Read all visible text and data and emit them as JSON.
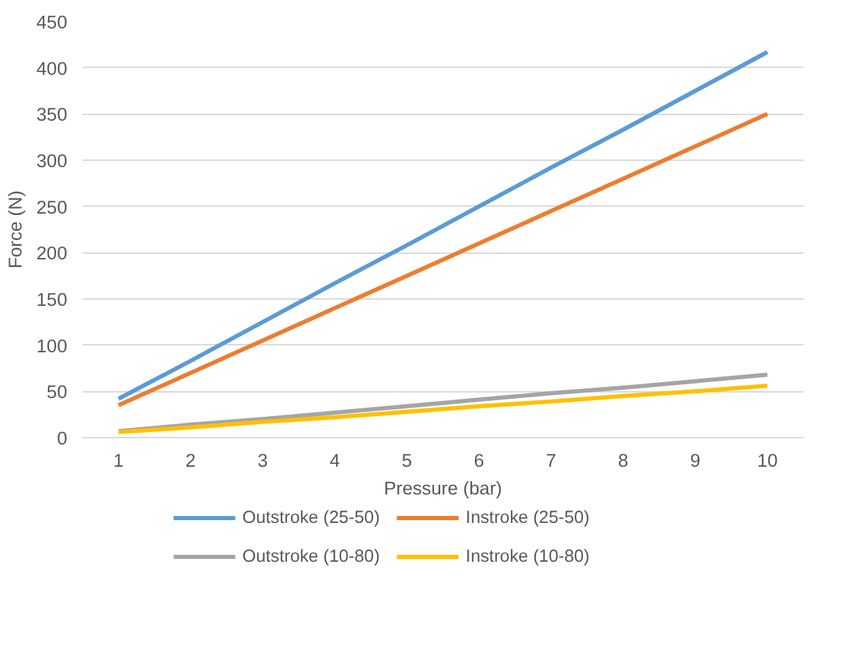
{
  "chart_data": {
    "type": "line",
    "xlabel": "Pressure (bar)",
    "ylabel": "Force (N)",
    "categories": [
      "1",
      "2",
      "3",
      "4",
      "5",
      "6",
      "7",
      "8",
      "9",
      "10"
    ],
    "series": [
      {
        "name": "Outstroke (25-50)",
        "color": "#5b9bd5",
        "values": [
          42,
          83,
          125,
          167,
          208,
          250,
          292,
          333,
          375,
          417
        ]
      },
      {
        "name": "Instroke (25-50)",
        "color": "#ed7d31",
        "values": [
          35,
          70,
          105,
          140,
          175,
          210,
          245,
          280,
          315,
          350
        ]
      },
      {
        "name": "Outstroke (10-80)",
        "color": "#a5a5a5",
        "values": [
          7,
          14,
          20,
          27,
          34,
          41,
          48,
          54,
          61,
          68
        ]
      },
      {
        "name": "Instroke (10-80)",
        "color": "#ffc000",
        "values": [
          6,
          11,
          17,
          22,
          28,
          34,
          39,
          45,
          50,
          56
        ]
      }
    ],
    "ylim": [
      0,
      450
    ],
    "yticks": [
      0,
      50,
      100,
      150,
      200,
      250,
      300,
      350,
      400,
      450
    ],
    "grid": "y",
    "legend": "bottom",
    "marker": "none",
    "line_style": "solid"
  }
}
